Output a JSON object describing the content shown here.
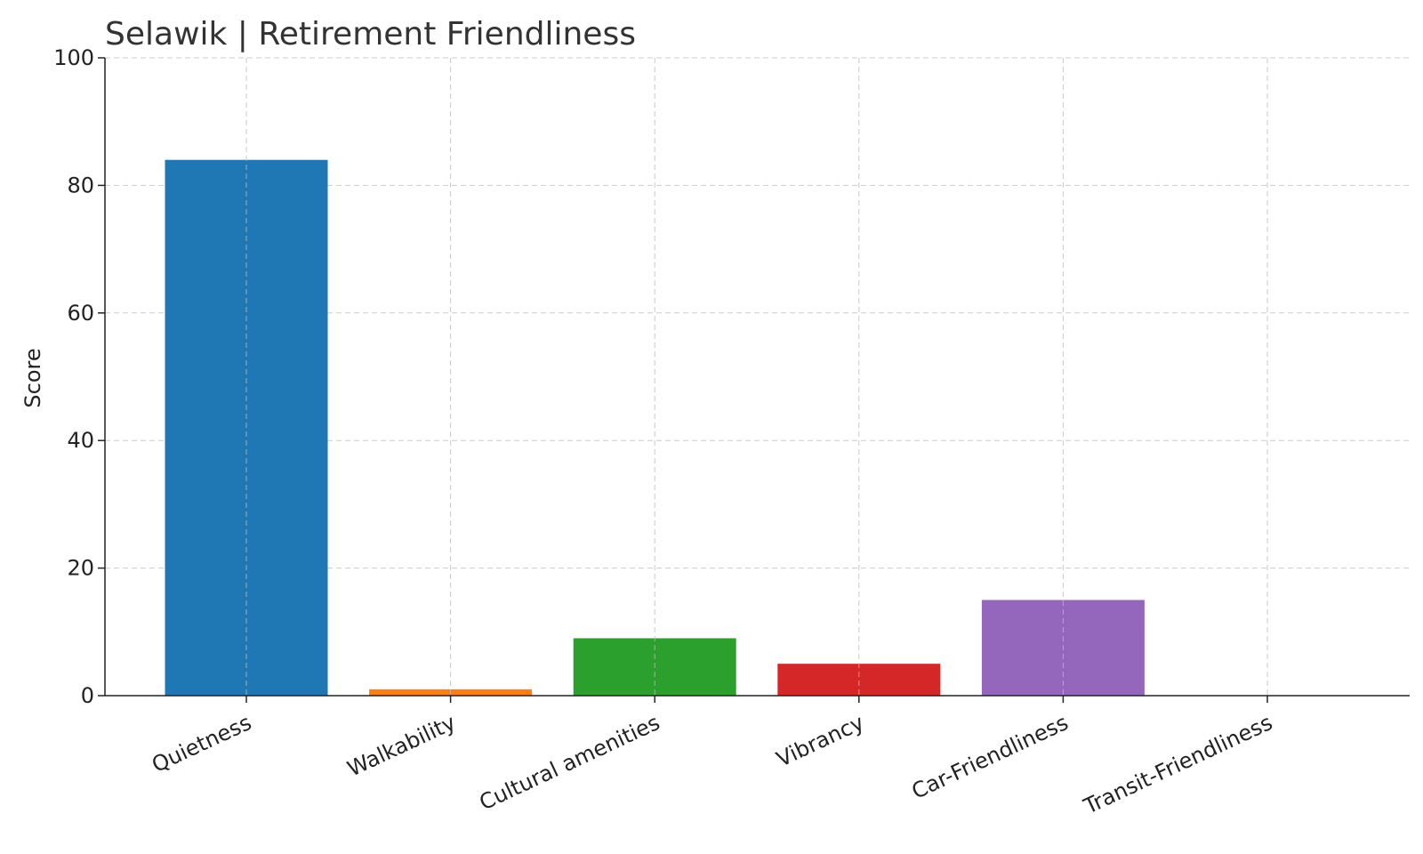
{
  "chart_data": {
    "type": "bar",
    "title": "Selawik | Retirement Friendliness",
    "xlabel": "",
    "ylabel": "Score",
    "categories": [
      "Quietness",
      "Walkability",
      "Cultural amenities",
      "Vibrancy",
      "Car-Friendliness",
      "Transit-Friendliness"
    ],
    "values": [
      84,
      1,
      9,
      5,
      15,
      0
    ],
    "colors": [
      "#1f77b4",
      "#ff7f0e",
      "#2ca02c",
      "#d62728",
      "#9467bd",
      "#8c564b"
    ],
    "ylim": [
      0,
      100
    ],
    "yticks": [
      0,
      20,
      40,
      60,
      80,
      100
    ],
    "grid": true,
    "legend": "none"
  }
}
